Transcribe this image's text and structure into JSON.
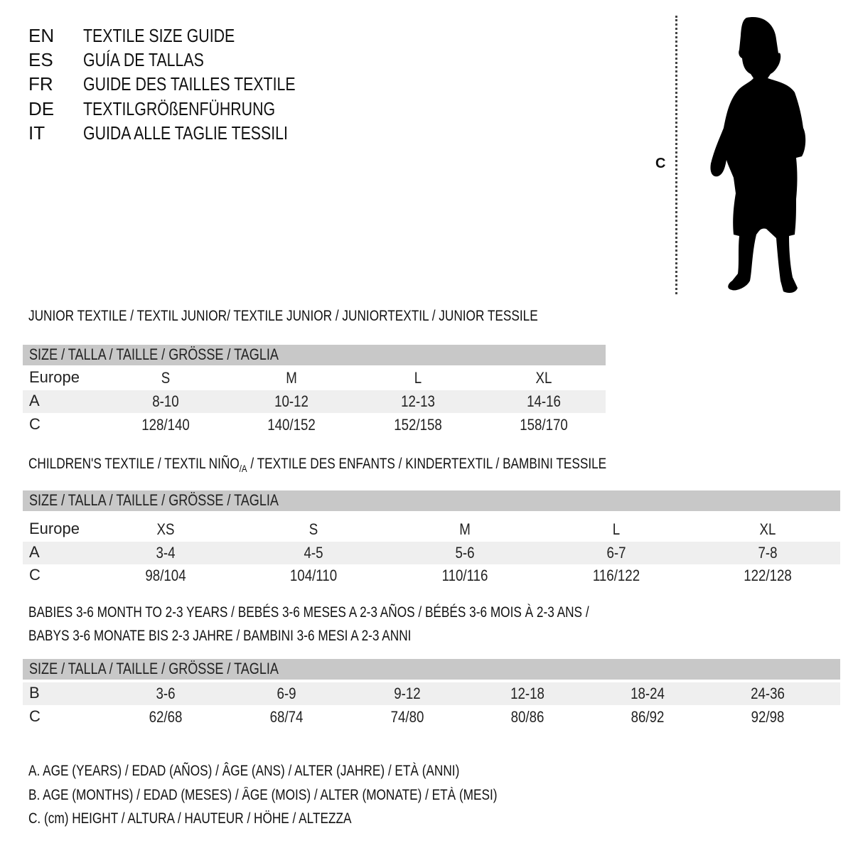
{
  "languages": [
    {
      "code": "EN",
      "title": "TEXTILE SIZE GUIDE"
    },
    {
      "code": "ES",
      "title": "GUÍA DE TALLAS"
    },
    {
      "code": "FR",
      "title": "GUIDE DES TAILLES TEXTILE"
    },
    {
      "code": "DE",
      "title": "TEXTILGRÖßENFÜHRUNG"
    },
    {
      "code": "IT",
      "title": "GUIDA ALLE TAGLIE TESSILI"
    }
  ],
  "figure": {
    "height_label": "C",
    "icon": "child-silhouette"
  },
  "junior": {
    "heading": "JUNIOR TEXTILE / TEXTIL JUNIOR/ TEXTILE JUNIOR / JUNIORTEXTIL / JUNIOR TESSILE",
    "size_header": "SIZE / TALLA / TAILLE / GRÖSSE / TAGLIA",
    "rows": [
      {
        "label": "Europe",
        "values": [
          "S",
          "M",
          "L",
          "XL"
        ]
      },
      {
        "label": "A",
        "values": [
          "8-10",
          "10-12",
          "12-13",
          "14-16"
        ]
      },
      {
        "label": "C",
        "values": [
          "128/140",
          "140/152",
          "152/158",
          "158/170"
        ]
      }
    ]
  },
  "children": {
    "heading_pre": "CHILDREN'S TEXTILE / TEXTIL NIÑO",
    "heading_sub": "/A",
    "heading_post": " / TEXTILE DES ENFANTS / KINDERTEXTIL / BAMBINI TESSILE",
    "size_header": "SIZE / TALLA / TAILLE / GRÖSSE / TAGLIA",
    "rows": [
      {
        "label": "Europe",
        "values": [
          "XS",
          "S",
          "M",
          "L",
          "XL"
        ]
      },
      {
        "label": "A",
        "values": [
          "3-4",
          "4-5",
          "5-6",
          "6-7",
          "7-8"
        ]
      },
      {
        "label": "C",
        "values": [
          "98/104",
          "104/110",
          "110/116",
          "116/122",
          "122/128"
        ]
      }
    ]
  },
  "babies": {
    "heading_line1": "BABIES 3-6 MONTH TO 2-3 YEARS / BEBÉS 3-6 MESES A 2-3 AÑOS / BÉBÉS 3-6 MOIS À 2-3 ANS /",
    "heading_line2": "BABYS 3-6 MONATE BIS 2-3 JAHRE / BAMBINI 3-6 MESI A 2-3 ANNI",
    "size_header": "SIZE / TALLA / TAILLE / GRÖSSE / TAGLIA",
    "rows": [
      {
        "label": "B",
        "values": [
          "3-6",
          "6-9",
          "9-12",
          "12-18",
          "18-24",
          "24-36"
        ]
      },
      {
        "label": "C",
        "values": [
          "62/68",
          "68/74",
          "74/80",
          "80/86",
          "86/92",
          "92/98"
        ]
      }
    ]
  },
  "legend": [
    "A. AGE (YEARS) / EDAD (AÑOS) / ÂGE (ANS) / ALTER (JAHRE) / ETÀ (ANNI)",
    "B. AGE (MONTHS) / EDAD (MESES) / ÂGE (MOIS) / ALTER (MONATE) / ETÀ (MESI)",
    "C. (cm) HEIGHT / ALTURA / HAUTEUR / HÖHE / ALTEZZA"
  ]
}
